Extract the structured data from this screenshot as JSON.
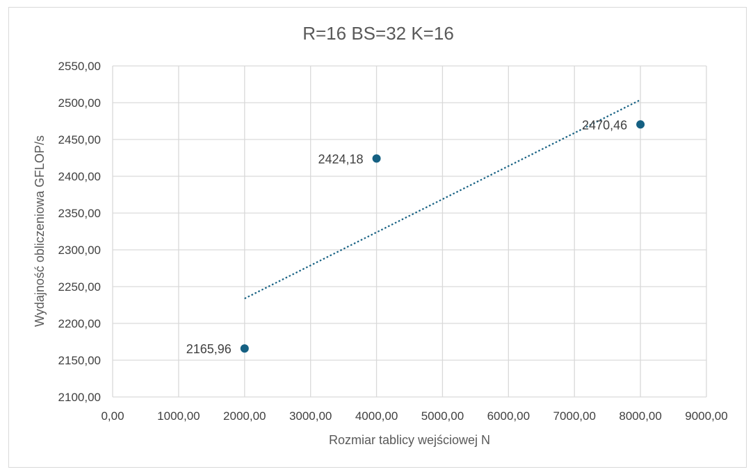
{
  "chart_data": {
    "type": "scatter",
    "title": "R=16 BS=32 K=16",
    "xlabel": "Rozmiar tablicy wejściowej N",
    "ylabel": "Wydajność obliczeniowa GFLOP/s",
    "xlim": [
      0,
      9000
    ],
    "ylim": [
      2100,
      2550
    ],
    "x_ticks": [
      "0,00",
      "1000,00",
      "2000,00",
      "3000,00",
      "4000,00",
      "5000,00",
      "6000,00",
      "7000,00",
      "8000,00",
      "9000,00"
    ],
    "y_ticks": [
      "2100,00",
      "2150,00",
      "2200,00",
      "2250,00",
      "2300,00",
      "2350,00",
      "2400,00",
      "2450,00",
      "2500,00",
      "2550,00"
    ],
    "grid": true,
    "series": [
      {
        "x": [
          2000,
          4000,
          8000
        ],
        "y": [
          2165.96,
          2424.18,
          2470.46
        ],
        "labels": [
          "2165,96",
          "2424,18",
          "2470,46"
        ],
        "color": "#156082"
      }
    ],
    "trendline": {
      "type": "linear",
      "x": [
        2000,
        8000
      ],
      "y": [
        2233.8,
        2503.9
      ],
      "style": "dotted",
      "color": "#156082"
    }
  }
}
